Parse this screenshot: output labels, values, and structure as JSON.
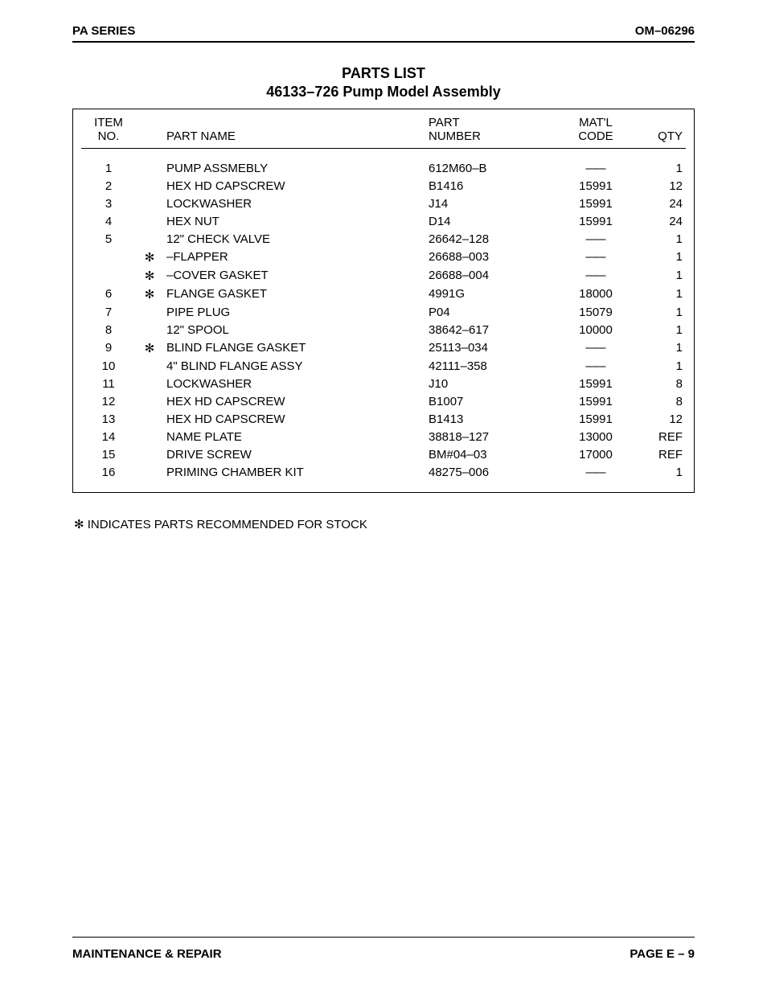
{
  "header": {
    "left": "PA SERIES",
    "right": "OM–06296"
  },
  "title": {
    "line1": "PARTS LIST",
    "line2": "46133–726 Pump Model Assembly"
  },
  "table": {
    "columns": {
      "item_l1": "ITEM",
      "item_l2": "NO.",
      "name": "PART NAME",
      "part_l1": "PART",
      "part_l2": "NUMBER",
      "matl_l1": "MAT'L",
      "matl_l2": "CODE",
      "qty": "QTY"
    },
    "rows": [
      {
        "item": "1",
        "star": "",
        "name": "PUMP ASSMEBLY",
        "part": "612M60–B",
        "matl": "–––",
        "qty": "1"
      },
      {
        "item": "2",
        "star": "",
        "name": "HEX HD CAPSCREW",
        "part": "B1416",
        "matl": "15991",
        "qty": "12"
      },
      {
        "item": "3",
        "star": "",
        "name": "LOCKWASHER",
        "part": "J14",
        "matl": "15991",
        "qty": "24"
      },
      {
        "item": "4",
        "star": "",
        "name": "HEX NUT",
        "part": "D14",
        "matl": "15991",
        "qty": "24"
      },
      {
        "item": "5",
        "star": "",
        "name": "12\" CHECK VALVE",
        "part": "26642–128",
        "matl": "–––",
        "qty": "1"
      },
      {
        "item": "",
        "star": "✻",
        "name": "–FLAPPER",
        "part": "26688–003",
        "matl": "–––",
        "qty": "1"
      },
      {
        "item": "",
        "star": "✻",
        "name": "–COVER GASKET",
        "part": "26688–004",
        "matl": "–––",
        "qty": "1"
      },
      {
        "item": "6",
        "star": "✻",
        "name": "FLANGE GASKET",
        "part": "4991G",
        "matl": "18000",
        "qty": "1"
      },
      {
        "item": "7",
        "star": "",
        "name": "PIPE PLUG",
        "part": "P04",
        "matl": "15079",
        "qty": "1"
      },
      {
        "item": "8",
        "star": "",
        "name": "12\" SPOOL",
        "part": "38642–617",
        "matl": "10000",
        "qty": "1"
      },
      {
        "item": "9",
        "star": "✻",
        "name": "BLIND FLANGE GASKET",
        "part": "25113–034",
        "matl": "–––",
        "qty": "1"
      },
      {
        "item": "10",
        "star": "",
        "name": "4\" BLIND FLANGE ASSY",
        "part": "42111–358",
        "matl": "–––",
        "qty": "1"
      },
      {
        "item": "11",
        "star": "",
        "name": "LOCKWASHER",
        "part": "J10",
        "matl": "15991",
        "qty": "8"
      },
      {
        "item": "12",
        "star": "",
        "name": "HEX HD CAPSCREW",
        "part": "B1007",
        "matl": "15991",
        "qty": "8"
      },
      {
        "item": "13",
        "star": "",
        "name": "HEX HD CAPSCREW",
        "part": "B1413",
        "matl": "15991",
        "qty": "12"
      },
      {
        "item": "14",
        "star": "",
        "name": "NAME PLATE",
        "part": "38818–127",
        "matl": "13000",
        "qty": "REF"
      },
      {
        "item": "15",
        "star": "",
        "name": "DRIVE SCREW",
        "part": "BM#04–03",
        "matl": "17000",
        "qty": "REF"
      },
      {
        "item": "16",
        "star": "",
        "name": "PRIMING CHAMBER KIT",
        "part": "48275–006",
        "matl": "–––",
        "qty": "1"
      }
    ]
  },
  "footnote": "✻ INDICATES PARTS RECOMMENDED FOR STOCK",
  "footer": {
    "left": "MAINTENANCE & REPAIR",
    "right": "PAGE E – 9"
  }
}
